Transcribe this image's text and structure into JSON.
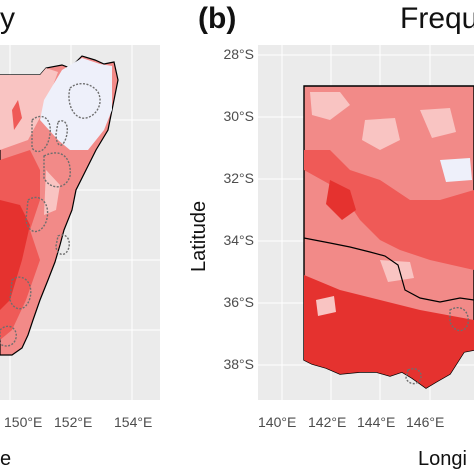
{
  "panel_a": {
    "title_fragment": "y",
    "x_ticks": [
      "150°E",
      "152°E",
      "154°E"
    ],
    "x_title_fragment": "e"
  },
  "panel_b": {
    "label": "(b)",
    "title_fragment": "Frequ",
    "y_ticks": [
      "28°S",
      "30°S",
      "32°S",
      "34°S",
      "36°S",
      "38°S"
    ],
    "x_ticks": [
      "140°E",
      "142°E",
      "144°E",
      "146°E"
    ],
    "y_title": "Latitude",
    "x_title_fragment": "Longi"
  },
  "colors": {
    "panel_bg": "#ebebeb",
    "grid": "#ffffff",
    "high": "#e5322f",
    "medium_high": "#ef5a57",
    "medium": "#f28a88",
    "low": "#f9c4c2",
    "lowest": "#eef0fa",
    "border": "#000000",
    "stations": "#6e6e6e"
  }
}
